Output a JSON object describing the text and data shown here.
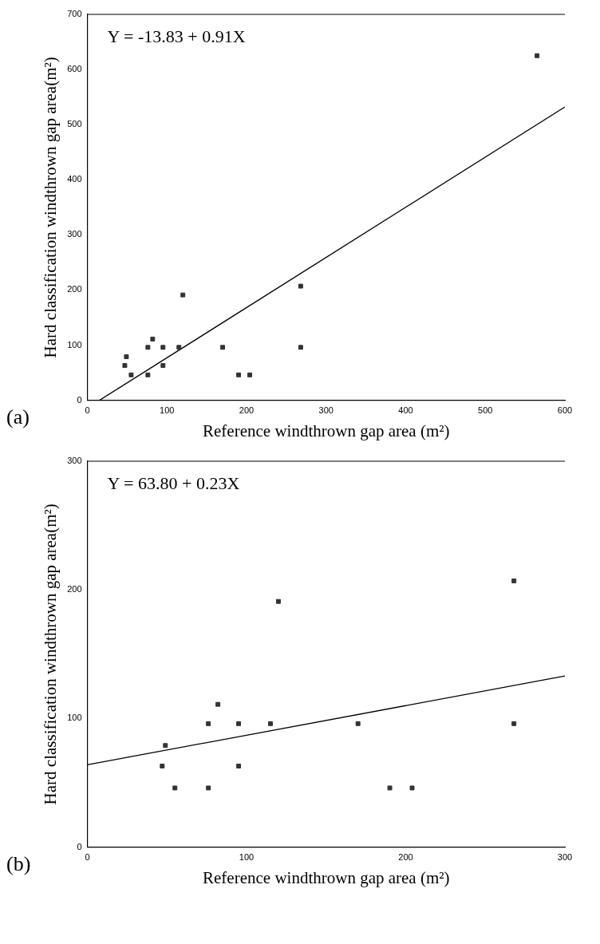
{
  "chart_data": [
    {
      "type": "scatter",
      "xlabel": "Reference windthrown gap area (m²)",
      "ylabel": "Hard classification windthrown gap area(m²)",
      "annotations": [
        "(a)",
        "Y = -13.83 + 0.91X"
      ],
      "xlim": [
        0,
        600
      ],
      "ylim": [
        0,
        700
      ],
      "xticks": [
        0,
        100,
        200,
        300,
        400,
        500,
        600
      ],
      "yticks": [
        0,
        100,
        200,
        300,
        400,
        500,
        600,
        700
      ],
      "grid": false,
      "legend": false,
      "marker": "square",
      "series": [
        {
          "type": "scatter",
          "color": "#333333",
          "x": [
            47,
            49,
            55,
            76,
            76,
            82,
            95,
            95,
            115,
            120,
            170,
            190,
            204,
            268,
            268,
            565
          ],
          "values": [
            63,
            79,
            46,
            46,
            96,
            111,
            96,
            63,
            96,
            191,
            96,
            46,
            46,
            207,
            96,
            625
          ]
        },
        {
          "type": "line",
          "color": "#000000",
          "marker": "none",
          "x": [
            15.2,
            600
          ],
          "values": [
            0,
            532
          ]
        }
      ]
    },
    {
      "type": "scatter",
      "xlabel": "Reference windthrown gap area (m²)",
      "ylabel": "Hard classification windthrown gap area(m²)",
      "annotations": [
        "(b)",
        "Y = 63.80 + 0.23X"
      ],
      "xlim": [
        0,
        300
      ],
      "ylim": [
        0,
        300
      ],
      "xticks": [
        0,
        100,
        200,
        300
      ],
      "yticks": [
        0,
        100,
        200,
        300
      ],
      "grid": false,
      "legend": false,
      "marker": "square",
      "series": [
        {
          "type": "scatter",
          "color": "#333333",
          "x": [
            47,
            49,
            55,
            76,
            76,
            82,
            95,
            95,
            115,
            120,
            170,
            190,
            204,
            268,
            268
          ],
          "values": [
            63,
            79,
            46,
            46,
            96,
            111,
            96,
            63,
            96,
            191,
            96,
            46,
            46,
            207,
            96
          ]
        },
        {
          "type": "line",
          "color": "#000000",
          "marker": "none",
          "x": [
            0,
            300
          ],
          "values": [
            64,
            133
          ]
        }
      ]
    }
  ]
}
